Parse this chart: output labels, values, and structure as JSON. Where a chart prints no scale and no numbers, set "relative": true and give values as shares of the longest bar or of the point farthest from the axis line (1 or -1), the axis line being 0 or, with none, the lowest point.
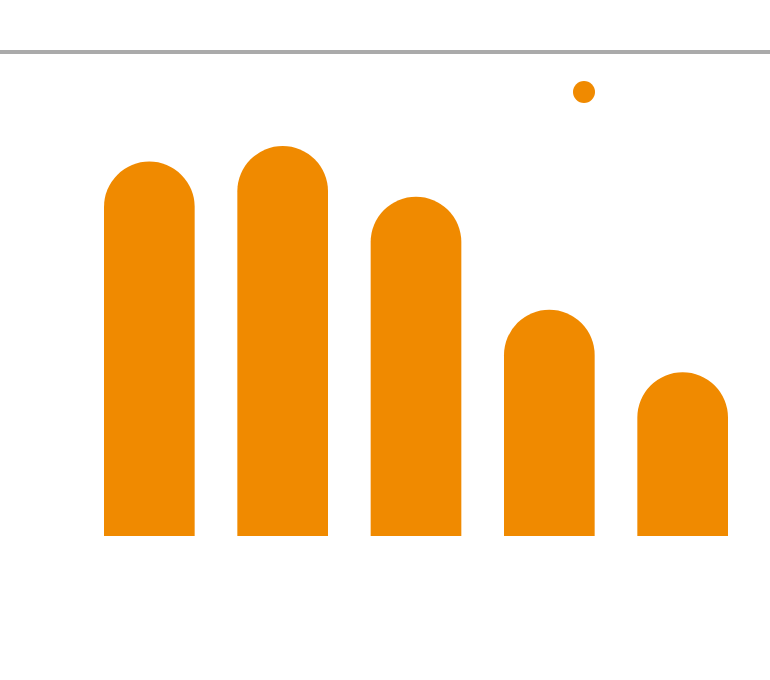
{
  "chart_data": {
    "type": "bar",
    "relative": true,
    "categories": [
      null,
      null,
      null,
      null,
      null
    ],
    "values": [
      0.96,
      1,
      0.87,
      0.58,
      0.42
    ],
    "color": "#f08a00"
  }
}
